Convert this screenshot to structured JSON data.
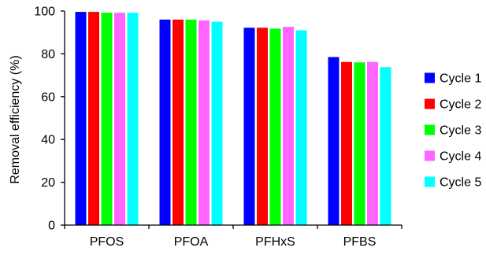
{
  "chart_data": {
    "type": "bar",
    "categories": [
      "PFOS",
      "PFOA",
      "PFHxS",
      "PFBS"
    ],
    "series": [
      {
        "name": "Cycle 1",
        "color": "#0000FF",
        "values": [
          99.6,
          96.0,
          92.2,
          78.5
        ]
      },
      {
        "name": "Cycle 2",
        "color": "#FF0000",
        "values": [
          99.6,
          96.0,
          92.2,
          76.2
        ]
      },
      {
        "name": "Cycle 3",
        "color": "#00FF00",
        "values": [
          99.2,
          96.0,
          91.8,
          76.0
        ]
      },
      {
        "name": "Cycle 4",
        "color": "#FF66FF",
        "values": [
          99.2,
          95.6,
          92.6,
          76.2
        ]
      },
      {
        "name": "Cycle 5",
        "color": "#00FFFF",
        "values": [
          99.2,
          95.0,
          91.0,
          73.8
        ]
      }
    ],
    "xlabel": "",
    "ylabel": "Removal efficiency (%)",
    "ylim": [
      0,
      100
    ],
    "yticks": [
      "0",
      "20",
      "40",
      "60",
      "80",
      "100"
    ],
    "grid": false,
    "legend_position": "right"
  }
}
